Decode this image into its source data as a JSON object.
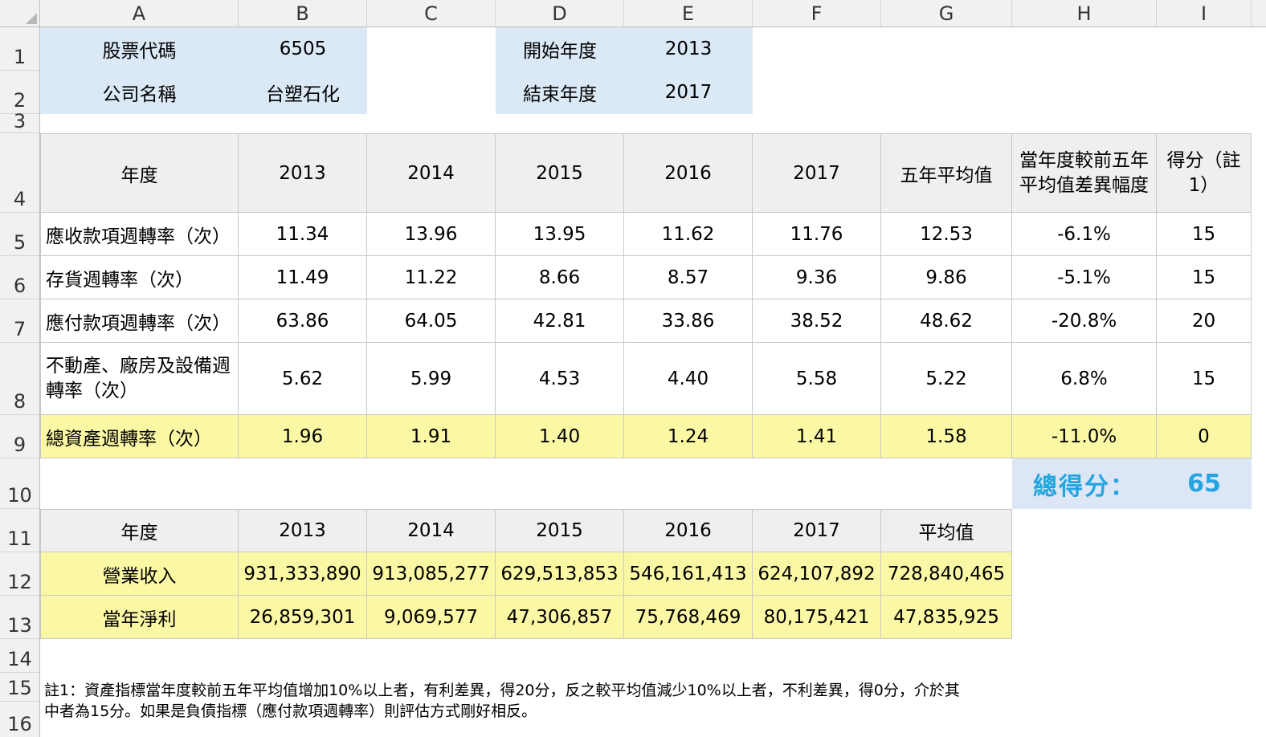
{
  "columns": [
    "A",
    "B",
    "C",
    "D",
    "E",
    "F",
    "G",
    "H",
    "I"
  ],
  "rows": [
    "1",
    "2",
    "3",
    "4",
    "5",
    "6",
    "7",
    "8",
    "9",
    "10",
    "11",
    "12",
    "13",
    "14",
    "15",
    "16"
  ],
  "info": {
    "stock_code_label": "股票代碼",
    "stock_code": "6505",
    "company_label": "公司名稱",
    "company": "台塑石化",
    "start_year_label": "開始年度",
    "start_year": "2013",
    "end_year_label": "結束年度",
    "end_year": "2017"
  },
  "ratio_table": {
    "header": {
      "year": "年度",
      "years": [
        "2013",
        "2014",
        "2015",
        "2016",
        "2017"
      ],
      "avg": "五年平均值",
      "diff": "當年度較前五年平均值差異幅度",
      "score": "得分（註1）"
    },
    "rows": [
      {
        "name": "應收款項週轉率（次）",
        "values": [
          "11.34",
          "13.96",
          "13.95",
          "11.62",
          "11.76"
        ],
        "avg": "12.53",
        "diff": "-6.1%",
        "score": "15"
      },
      {
        "name": "存貨週轉率（次）",
        "values": [
          "11.49",
          "11.22",
          "8.66",
          "8.57",
          "9.36"
        ],
        "avg": "9.86",
        "diff": "-5.1%",
        "score": "15"
      },
      {
        "name": "應付款項週轉率（次）",
        "values": [
          "63.86",
          "64.05",
          "42.81",
          "33.86",
          "38.52"
        ],
        "avg": "48.62",
        "diff": "-20.8%",
        "score": "20"
      },
      {
        "name": "不動產、廠房及設備週轉率（次）",
        "values": [
          "5.62",
          "5.99",
          "4.53",
          "4.40",
          "5.58"
        ],
        "avg": "5.22",
        "diff": "6.8%",
        "score": "15"
      },
      {
        "name": "總資產週轉率（次）",
        "values": [
          "1.96",
          "1.91",
          "1.40",
          "1.24",
          "1.41"
        ],
        "avg": "1.58",
        "diff": "-11.0%",
        "score": "0"
      }
    ],
    "total_label": "總得分：",
    "total": "65"
  },
  "revenue_table": {
    "header": {
      "year": "年度",
      "years": [
        "2013",
        "2014",
        "2015",
        "2016",
        "2017"
      ],
      "avg": "平均值"
    },
    "rows": [
      {
        "name": "營業收入",
        "values": [
          "931,333,890",
          "913,085,277",
          "629,513,853",
          "546,161,413",
          "624,107,892"
        ],
        "avg": "728,840,465"
      },
      {
        "name": "當年淨利",
        "values": [
          "26,859,301",
          "9,069,577",
          "47,306,857",
          "75,768,469",
          "80,175,421"
        ],
        "avg": "47,835,925"
      }
    ]
  },
  "notes": {
    "line1": "註1：資產指標當年度較前五年平均值增加10%以上者，有利差異，得20分，反之較平均值減少10%以上者，不利差異，得0分，介於其",
    "line2": "中者為15分。如果是負債指標（應付款項週轉率）則評估方式剛好相反。"
  }
}
